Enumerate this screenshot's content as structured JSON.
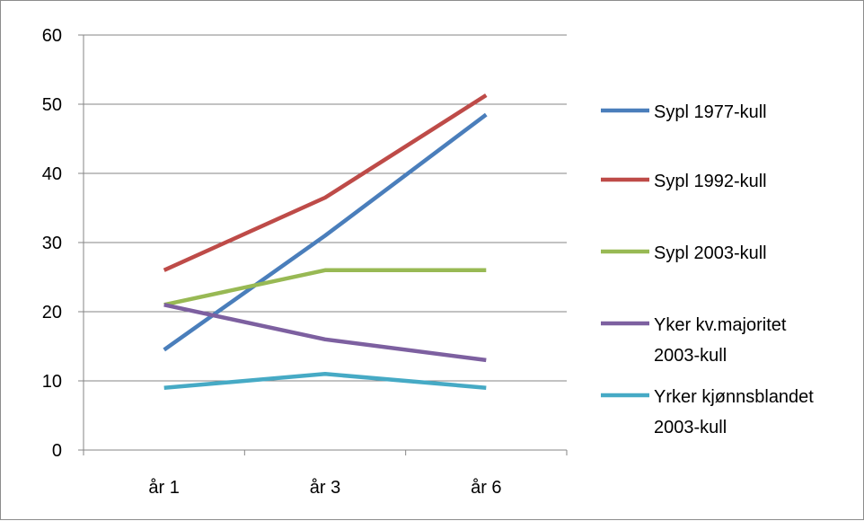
{
  "chart_data": {
    "type": "line",
    "categories": [
      "år 1",
      "år 3",
      "år 6"
    ],
    "ylim": [
      0,
      60
    ],
    "yticks": [
      0,
      10,
      20,
      30,
      40,
      50,
      60
    ],
    "grid": true,
    "legend_position": "right",
    "series": [
      {
        "name": "Sypl 1977-kull",
        "values": [
          14.5,
          31,
          48.5
        ],
        "color": "#4a7ebb"
      },
      {
        "name": "Sypl 1992-kull",
        "values": [
          26,
          36.5,
          51.3
        ],
        "color": "#be4b48"
      },
      {
        "name": "Sypl 2003-kull",
        "values": [
          21,
          26,
          26
        ],
        "color": "#98b954"
      },
      {
        "name": "Yker kv.majoritet 2003-kull",
        "values": [
          21,
          16,
          13
        ],
        "color": "#7d60a0"
      },
      {
        "name": "Yrker kjønnsblandet 2003-kull",
        "values": [
          9,
          11,
          9
        ],
        "color": "#46aac5"
      }
    ]
  }
}
